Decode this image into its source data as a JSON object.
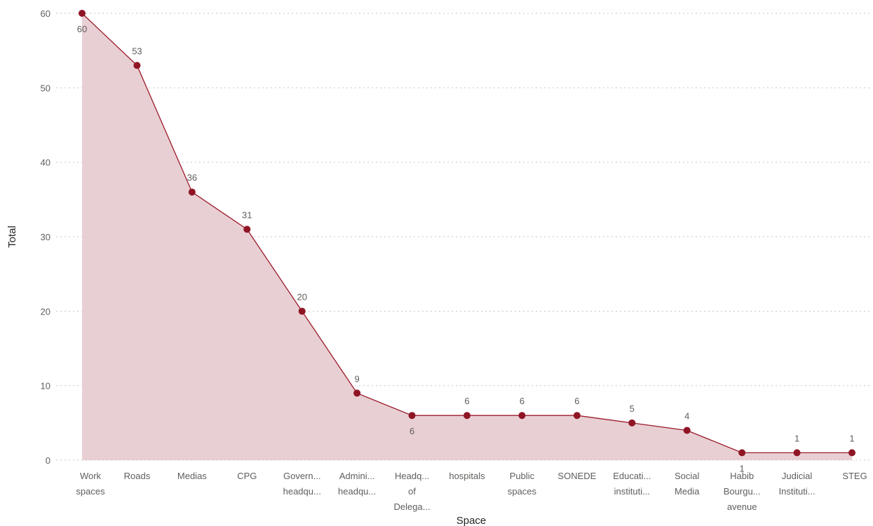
{
  "chart_data": {
    "type": "area",
    "xlabel": "Space",
    "ylabel": "Total",
    "ylim": [
      0,
      60
    ],
    "yticks": [
      0,
      10,
      20,
      30,
      40,
      50,
      60
    ],
    "grid": true,
    "legend": "none",
    "categories": [
      [
        "Work",
        "spaces"
      ],
      [
        "Roads"
      ],
      [
        "Medias"
      ],
      [
        "CPG"
      ],
      [
        "Govern...",
        "headqu..."
      ],
      [
        "Admini...",
        "headqu..."
      ],
      [
        "Headq...",
        "of",
        "Delega..."
      ],
      [
        "hospitals"
      ],
      [
        "Public",
        "spaces"
      ],
      [
        "SONEDE"
      ],
      [
        "Educati...",
        "instituti..."
      ],
      [
        "Social",
        "Media"
      ],
      [
        "Habib",
        "Bourgu...",
        "avenue"
      ],
      [
        "Judicial",
        "Instituti..."
      ],
      [
        "STEG"
      ]
    ],
    "values": [
      60,
      53,
      36,
      31,
      20,
      9,
      6,
      6,
      6,
      6,
      5,
      4,
      1,
      1,
      1
    ],
    "colors": {
      "line": "#9b1b2b",
      "fill": "#e8cfd3",
      "marker": "#8f1525"
    }
  }
}
